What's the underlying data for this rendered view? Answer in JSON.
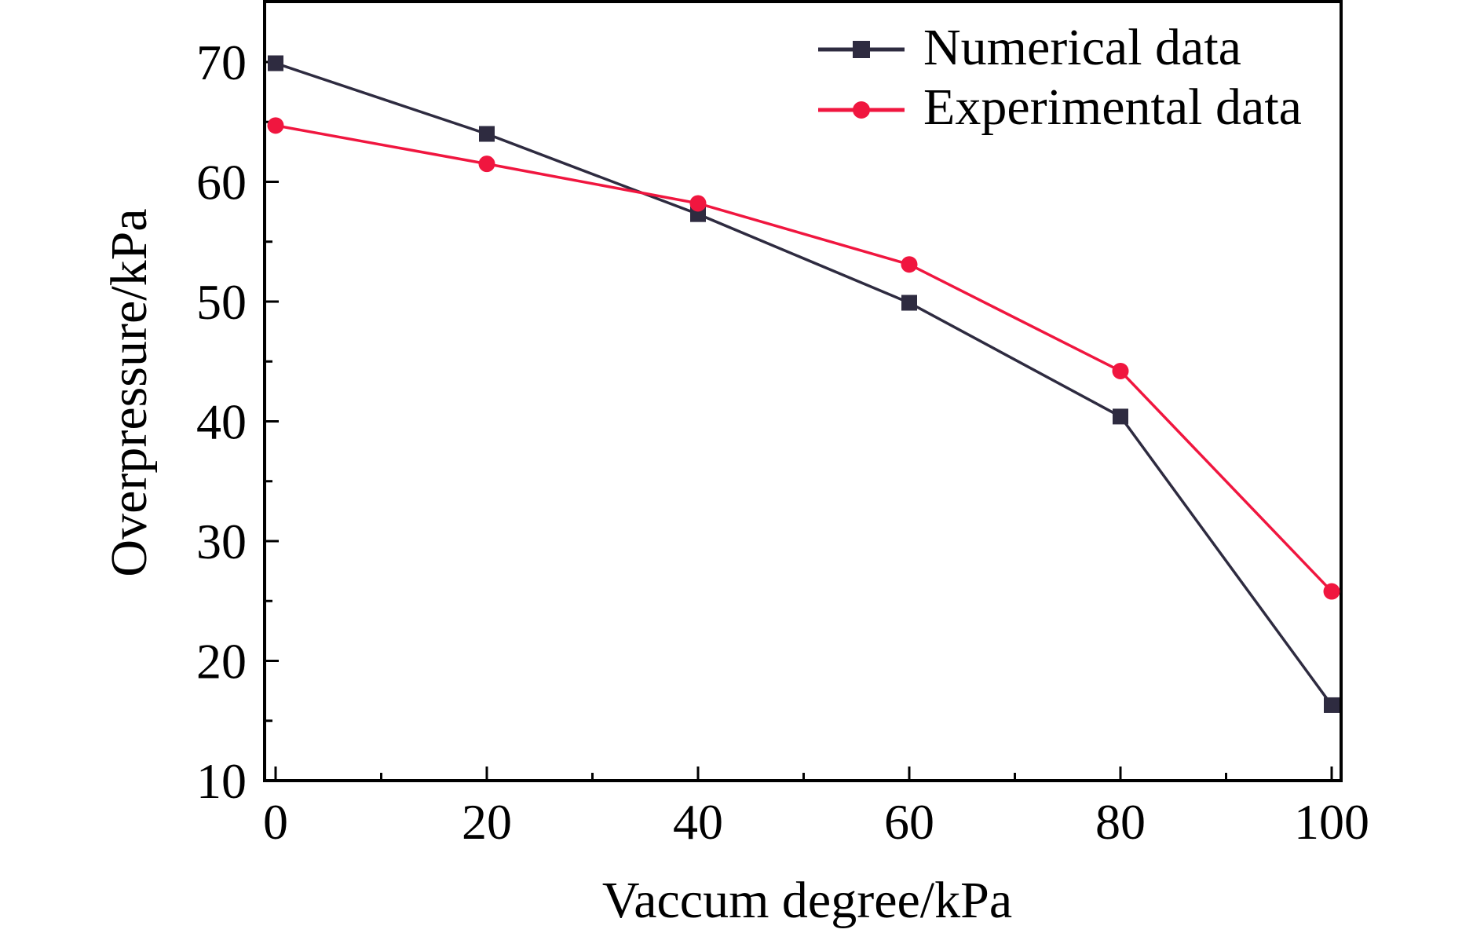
{
  "chart_data": {
    "type": "line",
    "title": "",
    "xlabel": "Vaccum degree/kPa",
    "ylabel": "Overpressure/kPa",
    "xlim": [
      0,
      100
    ],
    "ylim": [
      10,
      75
    ],
    "x": [
      0,
      20,
      40,
      60,
      80,
      100
    ],
    "x_ticks": [
      0,
      20,
      40,
      60,
      80,
      100
    ],
    "x_tick_labels": [
      "0",
      "20",
      "40",
      "60",
      "80",
      "100"
    ],
    "y_ticks": [
      10,
      20,
      30,
      40,
      50,
      60,
      70
    ],
    "y_tick_labels": [
      "10",
      "20",
      "30",
      "40",
      "50",
      "60",
      "70"
    ],
    "grid": false,
    "legend_position": "top-right",
    "series": [
      {
        "name": "Numerical data",
        "marker": "square",
        "color": "#2e2b40",
        "values": [
          69.9,
          64.0,
          57.3,
          49.9,
          40.4,
          16.3
        ]
      },
      {
        "name": "Experimental data",
        "marker": "circle",
        "color": "#f0163f",
        "values": [
          64.7,
          61.5,
          58.2,
          53.1,
          44.2,
          25.8
        ]
      }
    ]
  }
}
